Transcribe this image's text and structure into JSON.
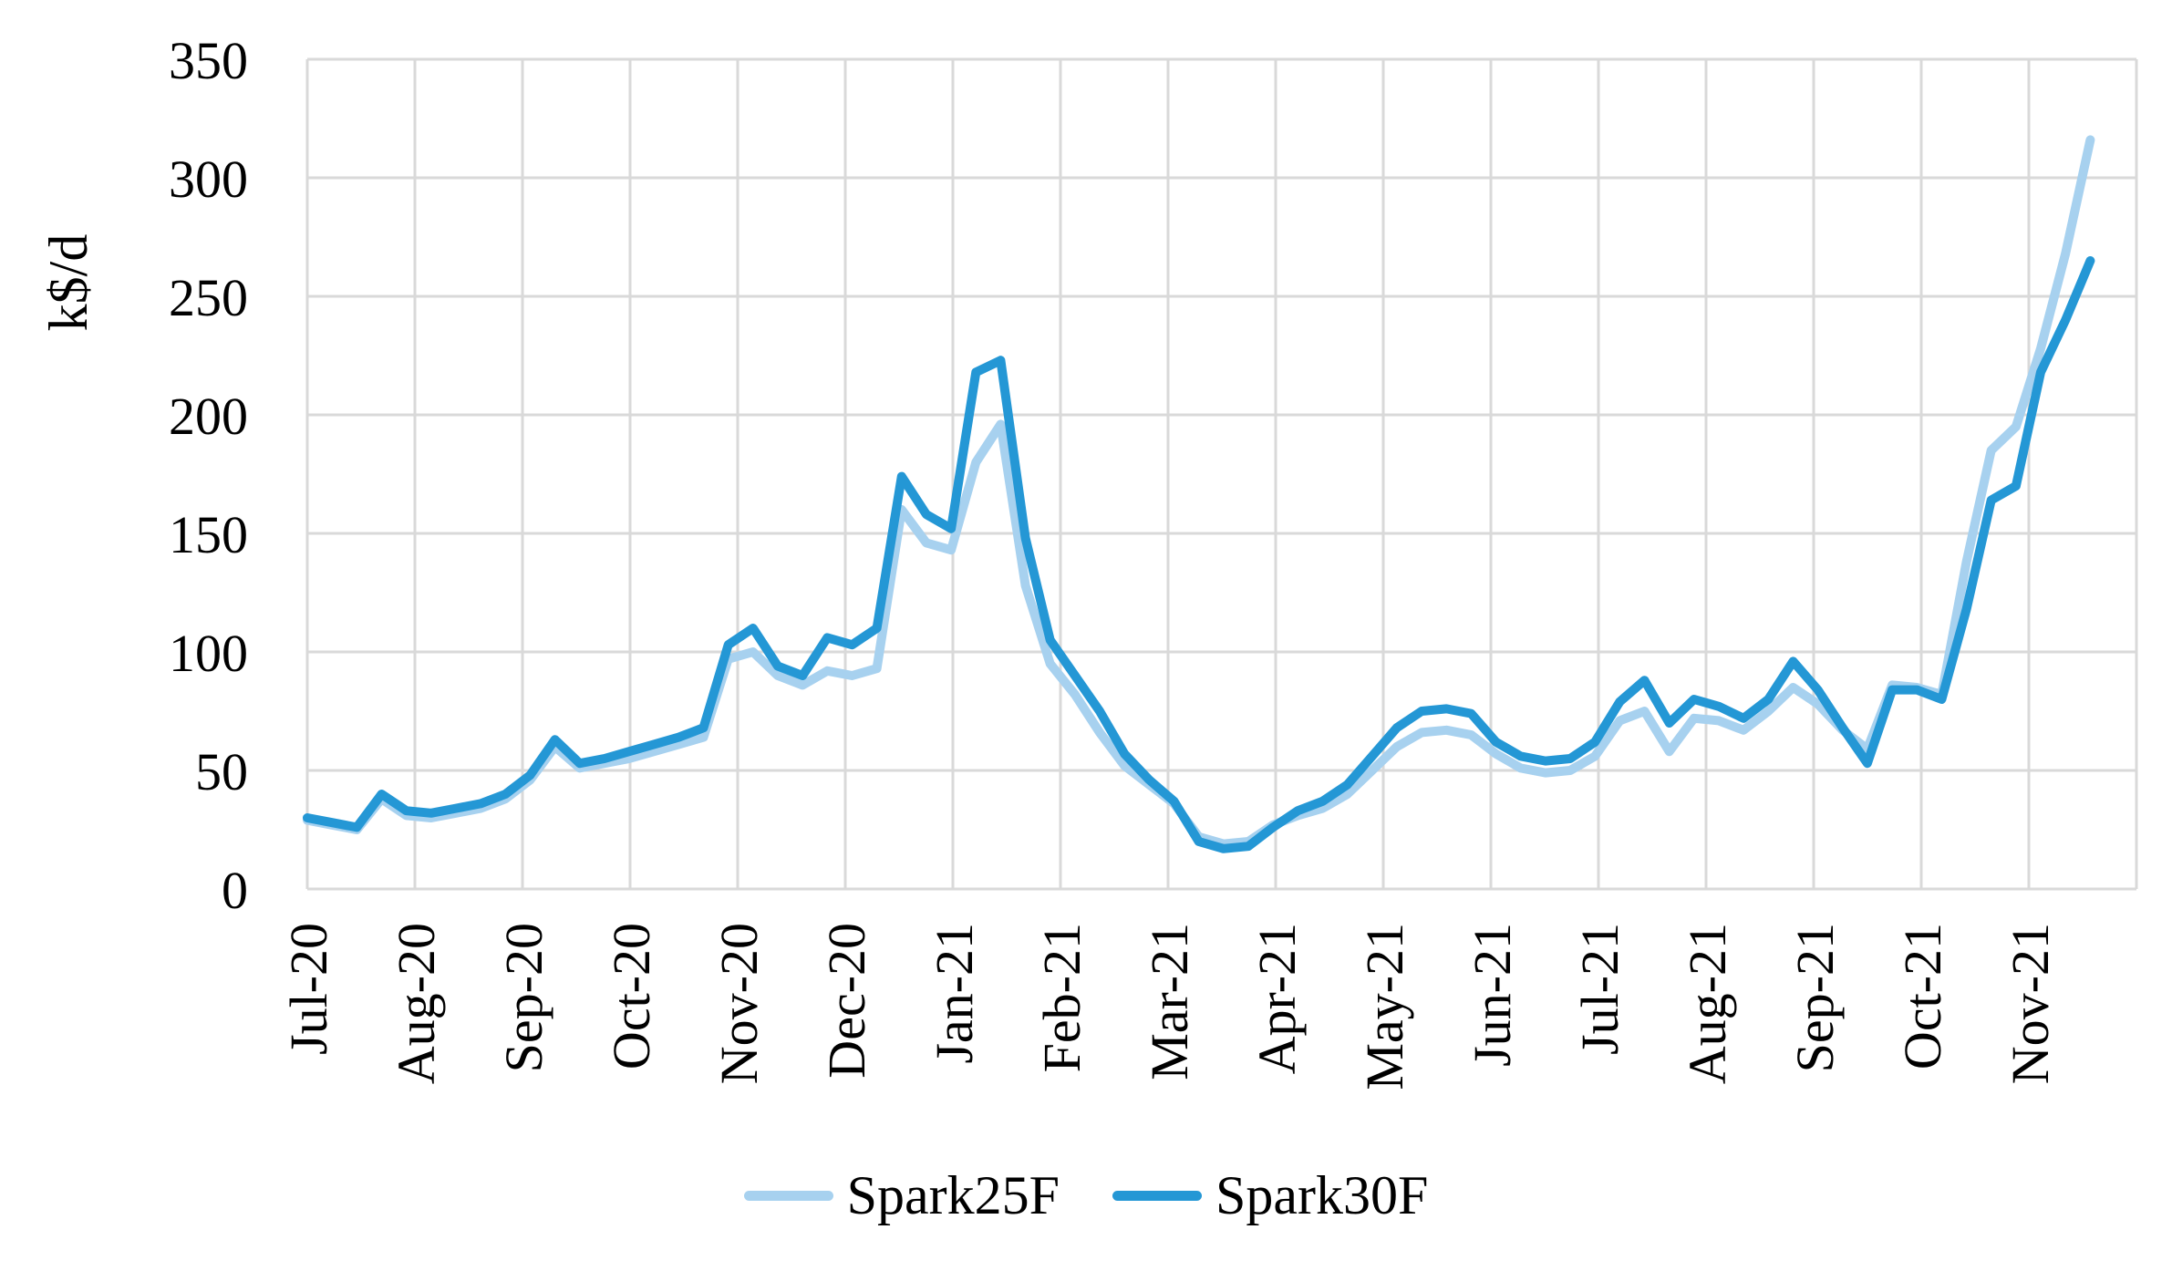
{
  "chart_data": {
    "type": "line",
    "title": "",
    "xlabel": "",
    "ylabel": "k$/d",
    "ylim": [
      0,
      350
    ],
    "y_ticks": [
      0,
      50,
      100,
      150,
      200,
      250,
      300,
      350
    ],
    "grid": true,
    "legend_position": "bottom",
    "x_frequency": "weekly",
    "points_per_month": 4.345,
    "categories": [
      "Jul-20",
      "Aug-20",
      "Sep-20",
      "Oct-20",
      "Nov-20",
      "Dec-20",
      "Jan-21",
      "Feb-21",
      "Mar-21",
      "Apr-21",
      "May-21",
      "Jun-21",
      "Jul-21",
      "Aug-21",
      "Sep-21",
      "Oct-21",
      "Nov-21"
    ],
    "series": [
      {
        "name": "Spark25F",
        "color": "#A7D1EF",
        "values": [
          29,
          27,
          25,
          38,
          31,
          30,
          32,
          34,
          38,
          46,
          60,
          51,
          53,
          55,
          58,
          61,
          64,
          97,
          100,
          90,
          86,
          92,
          90,
          93,
          160,
          146,
          143,
          180,
          196,
          128,
          95,
          82,
          66,
          52,
          44,
          36,
          22,
          19,
          20,
          27,
          31,
          34,
          40,
          50,
          60,
          66,
          67,
          65,
          57,
          51,
          49,
          50,
          56,
          71,
          75,
          58,
          72,
          71,
          67,
          75,
          85,
          78,
          67,
          59,
          86,
          85,
          82,
          138,
          185,
          195,
          228,
          268,
          316
        ]
      },
      {
        "name": "Spark30F",
        "color": "#2497D5",
        "values": [
          30,
          28,
          26,
          40,
          33,
          32,
          34,
          36,
          40,
          48,
          63,
          53,
          55,
          58,
          61,
          64,
          68,
          103,
          110,
          94,
          90,
          106,
          103,
          110,
          174,
          158,
          152,
          218,
          223,
          148,
          105,
          90,
          75,
          57,
          46,
          37,
          20,
          17,
          18,
          26,
          33,
          37,
          44,
          56,
          68,
          75,
          76,
          74,
          62,
          56,
          54,
          55,
          62,
          79,
          88,
          70,
          80,
          77,
          72,
          80,
          96,
          84,
          68,
          53,
          84,
          84,
          80,
          118,
          164,
          170,
          218,
          240,
          265
        ]
      }
    ],
    "grid_color": "#D9D9D9",
    "text_color": "#000000"
  },
  "legend": {
    "items": [
      {
        "label": "Spark25F"
      },
      {
        "label": "Spark30F"
      }
    ]
  }
}
